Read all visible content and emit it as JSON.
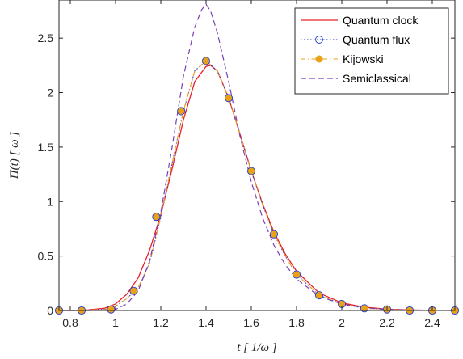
{
  "chart_data": {
    "type": "line",
    "xlabel": "t [ 1/ω ]",
    "ylabel": "Π(t) [ ω ]",
    "xlim": [
      0.75,
      2.5
    ],
    "ylim": [
      0,
      2.85
    ],
    "xticks": [
      0.8,
      1,
      1.2,
      1.4,
      1.6,
      1.8,
      2,
      2.2,
      2.4
    ],
    "yticks": [
      0,
      0.5,
      1,
      1.5,
      2,
      2.5
    ],
    "xtick_labels": [
      "0.8",
      "1",
      "1.2",
      "1.4",
      "1.6",
      "1.8",
      "2",
      "2.2",
      "2.4"
    ],
    "ytick_labels": [
      "0",
      "0.5",
      "1",
      "1.5",
      "2",
      "2.5"
    ],
    "grid": false,
    "legend_position": "top-right",
    "series": [
      {
        "name": "Quantum clock",
        "style": "solid",
        "color": "#e8202a",
        "x": [
          0.75,
          0.85,
          0.95,
          1.0,
          1.05,
          1.1,
          1.15,
          1.2,
          1.25,
          1.3,
          1.35,
          1.4,
          1.42,
          1.45,
          1.5,
          1.55,
          1.6,
          1.65,
          1.7,
          1.75,
          1.8,
          1.9,
          2.0,
          2.1,
          2.2,
          2.3,
          2.4,
          2.5
        ],
        "y": [
          0.0,
          0.0,
          0.02,
          0.06,
          0.15,
          0.3,
          0.55,
          0.88,
          1.3,
          1.75,
          2.1,
          2.24,
          2.25,
          2.2,
          1.95,
          1.62,
          1.28,
          0.98,
          0.72,
          0.52,
          0.36,
          0.16,
          0.07,
          0.03,
          0.012,
          0.005,
          0.002,
          0.0
        ]
      },
      {
        "name": "Quantum flux",
        "style": "dotted-circle",
        "color": "#1f3fd8",
        "x": [
          0.75,
          0.85,
          0.95,
          1.0,
          1.05,
          1.1,
          1.15,
          1.2,
          1.25,
          1.3,
          1.35,
          1.4,
          1.45,
          1.5,
          1.55,
          1.6,
          1.65,
          1.7,
          1.75,
          1.8,
          1.9,
          2.0,
          2.1,
          2.2,
          2.3,
          2.4,
          2.5
        ],
        "y": [
          0.0,
          0.0,
          0.01,
          0.04,
          0.11,
          0.21,
          0.43,
          0.86,
          1.35,
          1.83,
          2.2,
          2.29,
          2.2,
          1.95,
          1.62,
          1.28,
          0.97,
          0.7,
          0.5,
          0.33,
          0.14,
          0.06,
          0.02,
          0.01,
          0.0,
          0.0,
          0.0
        ]
      },
      {
        "name": "Kijowski",
        "style": "dashdot-dot",
        "color": "#e9a11a",
        "x": [
          0.75,
          0.85,
          0.95,
          1.0,
          1.05,
          1.1,
          1.15,
          1.2,
          1.25,
          1.3,
          1.35,
          1.4,
          1.45,
          1.5,
          1.55,
          1.6,
          1.65,
          1.7,
          1.75,
          1.8,
          1.9,
          2.0,
          2.1,
          2.2,
          2.3,
          2.4,
          2.5
        ],
        "y": [
          0.0,
          0.0,
          0.01,
          0.04,
          0.11,
          0.21,
          0.43,
          0.86,
          1.35,
          1.83,
          2.2,
          2.29,
          2.2,
          1.95,
          1.62,
          1.28,
          0.97,
          0.7,
          0.5,
          0.33,
          0.14,
          0.06,
          0.02,
          0.01,
          0.0,
          0.0,
          0.0
        ]
      },
      {
        "name": "Semiclassical",
        "style": "dashed",
        "color": "#7b3fb5",
        "x": [
          0.75,
          0.9,
          1.0,
          1.05,
          1.1,
          1.15,
          1.2,
          1.25,
          1.3,
          1.35,
          1.38,
          1.4,
          1.42,
          1.45,
          1.5,
          1.55,
          1.6,
          1.65,
          1.7,
          1.75,
          1.8,
          1.9,
          2.0,
          2.1,
          2.2,
          2.3,
          2.5
        ],
        "y": [
          0.0,
          0.0,
          0.01,
          0.06,
          0.18,
          0.45,
          0.9,
          1.5,
          2.15,
          2.6,
          2.76,
          2.81,
          2.75,
          2.55,
          2.1,
          1.6,
          1.18,
          0.85,
          0.6,
          0.42,
          0.29,
          0.13,
          0.06,
          0.025,
          0.01,
          0.004,
          0.0
        ]
      }
    ],
    "marker_points_x": [
      0.75,
      0.85,
      0.98,
      1.08,
      1.18,
      1.29,
      1.4,
      1.5,
      1.6,
      1.7,
      1.8,
      1.9,
      2.0,
      2.1,
      2.2,
      2.3,
      2.4,
      2.5
    ],
    "marker_points_y": [
      0.0,
      0.0,
      0.01,
      0.18,
      0.86,
      1.83,
      2.29,
      1.95,
      1.28,
      0.7,
      0.33,
      0.14,
      0.06,
      0.02,
      0.01,
      0.0,
      0.0,
      0.0
    ]
  }
}
